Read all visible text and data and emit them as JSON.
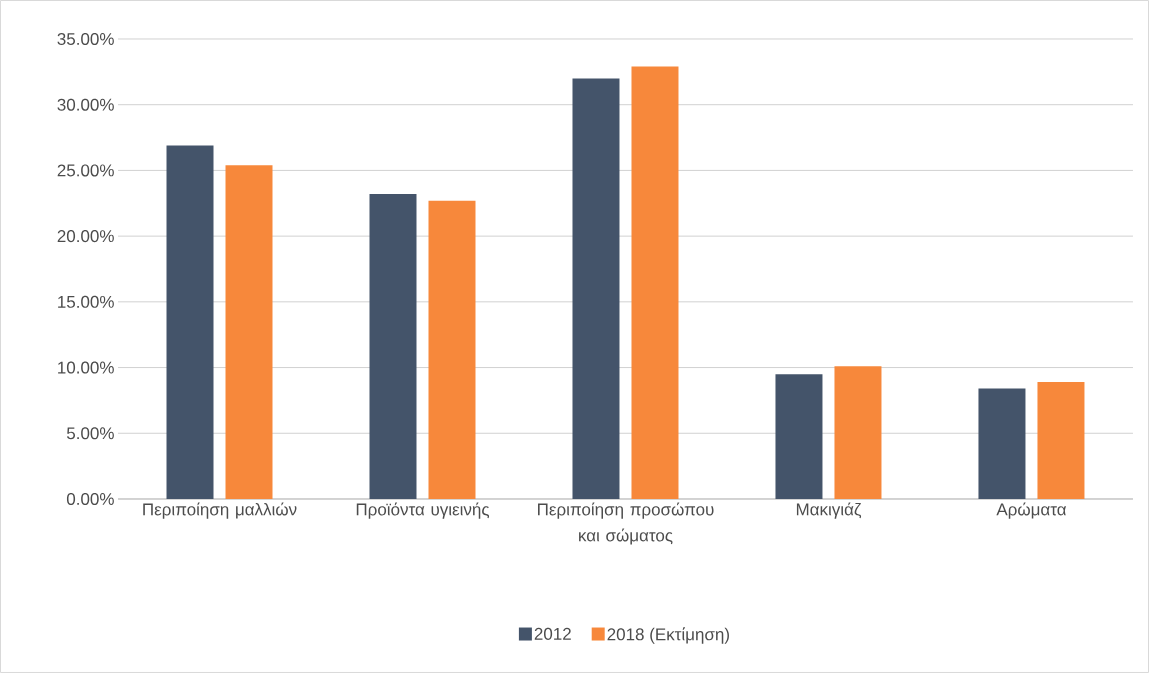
{
  "chart_data": {
    "type": "bar",
    "categories": [
      "Περιποίηση μαλλιών",
      "Προϊόντα υγιεινής",
      "Περιποίηση προσώπου και σώματος",
      "Μακιγιάζ",
      "Αρώματα"
    ],
    "series": [
      {
        "name": "2012",
        "color": "#44546a",
        "values": [
          26.9,
          23.2,
          32.0,
          9.5,
          8.4
        ]
      },
      {
        "name": "2018 (Εκτίμηση)",
        "color": "#f7883b",
        "values": [
          25.4,
          22.7,
          32.9,
          10.1,
          8.9
        ]
      }
    ],
    "ylim": [
      0,
      35
    ],
    "yticks": [
      {
        "value": 0,
        "label": "0.00%"
      },
      {
        "value": 5,
        "label": "5.00%"
      },
      {
        "value": 10,
        "label": "10.00%"
      },
      {
        "value": 15,
        "label": "15.00%"
      },
      {
        "value": 20,
        "label": "20.00%"
      },
      {
        "value": 25,
        "label": "25.00%"
      },
      {
        "value": 30,
        "label": "30.00%"
      },
      {
        "value": 35,
        "label": "35.00%"
      }
    ],
    "grid": "y",
    "legend": "bottom"
  }
}
